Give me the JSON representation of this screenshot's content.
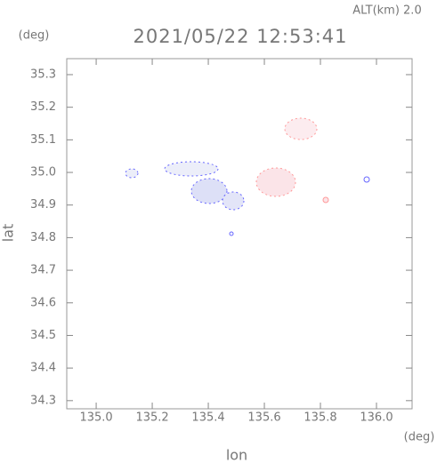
{
  "chart_data": {
    "type": "map",
    "annotation": "ALT(km)  2.0",
    "title": "2021/05/22 12:53:41",
    "y_unit": "(deg)",
    "x_unit": "(deg)",
    "ylabel": "lat",
    "xlabel": "lon",
    "xlim": [
      134.895,
      136.127
    ],
    "ylim": [
      34.275,
      35.349
    ],
    "xticks": [
      {
        "value": 135.0,
        "label": "135.0"
      },
      135.2,
      135.4,
      135.6,
      135.8,
      {
        "value": 136.0,
        "label": "136.0"
      }
    ],
    "yticks": [
      34.3,
      34.4,
      34.5,
      34.6,
      34.7,
      34.8,
      34.9,
      {
        "value": 35.0,
        "label": "35.0"
      },
      35.1,
      35.2,
      35.3
    ]
  }
}
